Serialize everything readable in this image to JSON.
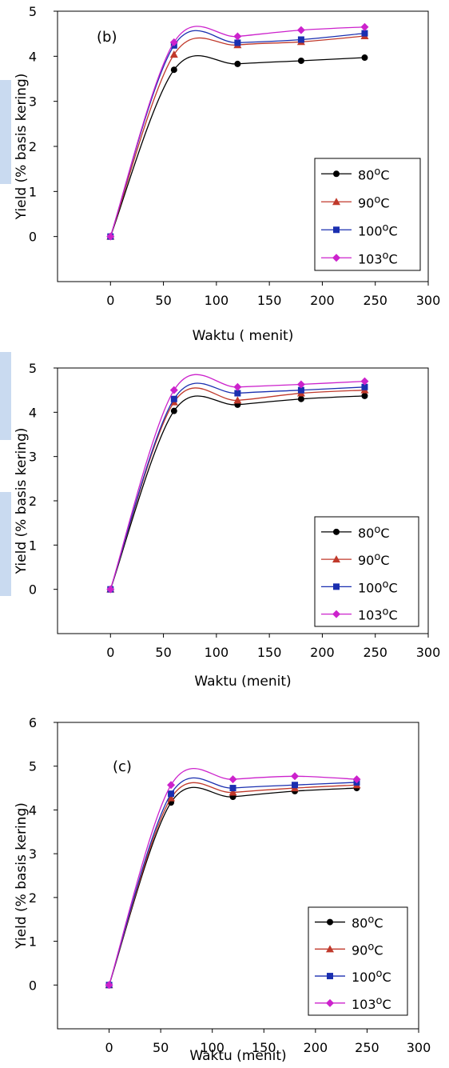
{
  "chart_data": [
    {
      "type": "line",
      "annotation": "(b)",
      "xlabel": "Waktu ( menit)",
      "ylabel": "Yield (% basis kering)",
      "xlim": [
        -50,
        300
      ],
      "ylim": [
        -1,
        5
      ],
      "xticks": [
        0,
        50,
        100,
        150,
        200,
        250,
        300
      ],
      "yticks": [
        0,
        1,
        2,
        3,
        4,
        5
      ],
      "legend_position": "bottom-right",
      "x": [
        0,
        60,
        120,
        180,
        240
      ],
      "series": [
        {
          "name": "80",
          "unit": "C",
          "marker": "circle",
          "color": "#000000",
          "values": [
            0,
            3.7,
            3.83,
            3.9,
            3.97
          ]
        },
        {
          "name": "90",
          "unit": "C",
          "marker": "triangle",
          "color": "#c0392b",
          "values": [
            0,
            4.04,
            4.25,
            4.32,
            4.45
          ]
        },
        {
          "name": "100",
          "unit": "C",
          "marker": "square",
          "color": "#1a2fb0",
          "values": [
            0,
            4.24,
            4.3,
            4.37,
            4.51
          ]
        },
        {
          "name": "103",
          "unit": "C",
          "marker": "diamond",
          "color": "#cc22cc",
          "values": [
            0,
            4.31,
            4.44,
            4.58,
            4.65
          ]
        }
      ]
    },
    {
      "type": "line",
      "annotation": "",
      "xlabel": "Waktu (menit)",
      "ylabel": "Yield (% basis kering)",
      "xlim": [
        -50,
        300
      ],
      "ylim": [
        -1,
        5
      ],
      "xticks": [
        0,
        50,
        100,
        150,
        200,
        250,
        300
      ],
      "yticks": [
        0,
        1,
        2,
        3,
        4,
        5
      ],
      "legend_position": "bottom-right",
      "x": [
        0,
        60,
        120,
        180,
        240
      ],
      "series": [
        {
          "name": "80",
          "unit": "C",
          "marker": "circle",
          "color": "#000000",
          "values": [
            0,
            4.03,
            4.17,
            4.3,
            4.37
          ]
        },
        {
          "name": "90",
          "unit": "C",
          "marker": "triangle",
          "color": "#c0392b",
          "values": [
            0,
            4.23,
            4.27,
            4.43,
            4.5
          ]
        },
        {
          "name": "100",
          "unit": "C",
          "marker": "square",
          "color": "#1a2fb0",
          "values": [
            0,
            4.3,
            4.43,
            4.5,
            4.57
          ]
        },
        {
          "name": "103",
          "unit": "C",
          "marker": "diamond",
          "color": "#cc22cc",
          "values": [
            0,
            4.5,
            4.57,
            4.63,
            4.7
          ]
        }
      ]
    },
    {
      "type": "line",
      "annotation": "(c)",
      "xlabel": "Waktu (menit)",
      "ylabel": "Yield (% basis kering)",
      "xlim": [
        -50,
        300
      ],
      "ylim": [
        -1,
        6
      ],
      "xticks": [
        0,
        50,
        100,
        150,
        200,
        250,
        300
      ],
      "yticks": [
        0,
        1,
        2,
        3,
        4,
        5,
        6
      ],
      "legend_position": "bottom-right",
      "x": [
        0,
        60,
        120,
        180,
        240
      ],
      "series": [
        {
          "name": "80",
          "unit": "C",
          "marker": "circle",
          "color": "#000000",
          "values": [
            0,
            4.17,
            4.3,
            4.43,
            4.5
          ]
        },
        {
          "name": "90",
          "unit": "C",
          "marker": "triangle",
          "color": "#c0392b",
          "values": [
            0,
            4.27,
            4.4,
            4.5,
            4.57
          ]
        },
        {
          "name": "100",
          "unit": "C",
          "marker": "square",
          "color": "#1a2fb0",
          "values": [
            0,
            4.37,
            4.5,
            4.57,
            4.63
          ]
        },
        {
          "name": "103",
          "unit": "C",
          "marker": "diamond",
          "color": "#cc22cc",
          "values": [
            0,
            4.57,
            4.7,
            4.77,
            4.7
          ]
        }
      ]
    }
  ]
}
